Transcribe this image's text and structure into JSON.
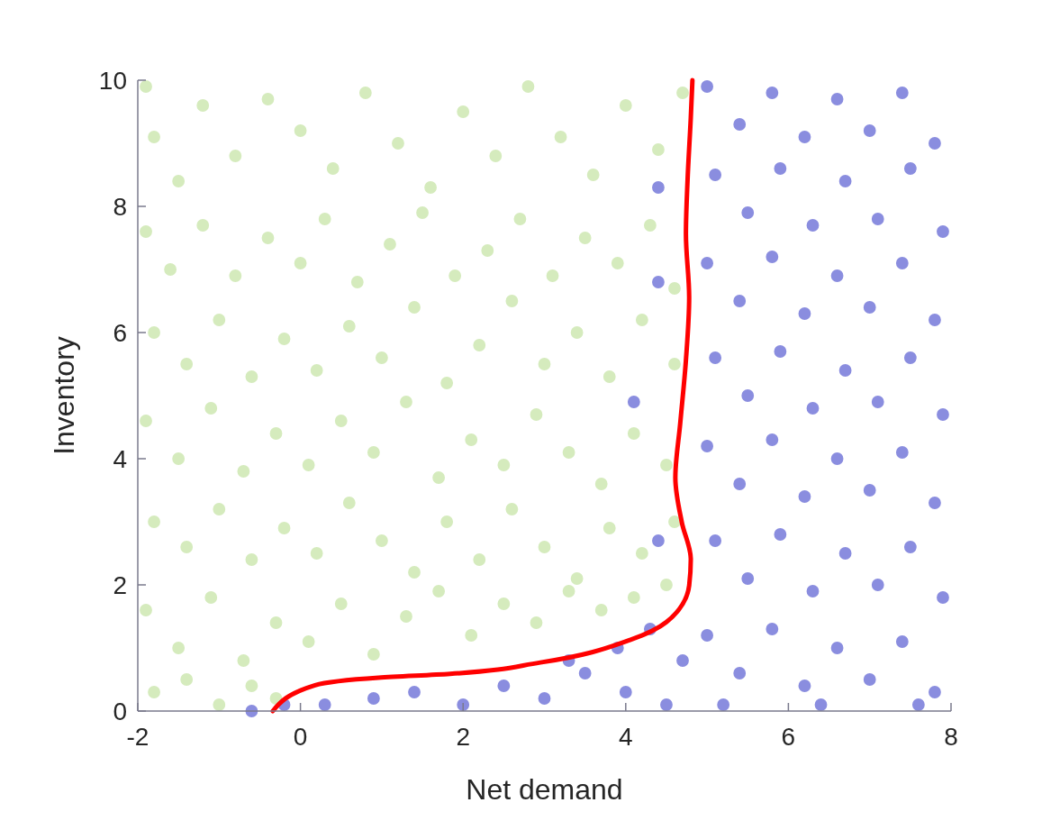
{
  "chart_data": {
    "type": "scatter",
    "xlabel": "Net demand",
    "ylabel": "Inventory",
    "xlim": [
      -2,
      8
    ],
    "ylim": [
      0,
      10
    ],
    "xticks": [
      -2,
      0,
      2,
      4,
      6,
      8
    ],
    "yticks": [
      0,
      2,
      4,
      6,
      8,
      10
    ],
    "grid": false,
    "series": [
      {
        "marker": "circle",
        "color": "#d5ebbd",
        "x": [
          -1.9,
          -1.8,
          -1.5,
          -1.2,
          -0.8,
          -0.4,
          0,
          0.4,
          0.8,
          1.2,
          1.6,
          2.0,
          2.4,
          2.8,
          3.2,
          3.6,
          4.0,
          4.4,
          4.7,
          -1.9,
          -1.6,
          -1.2,
          -0.8,
          -0.4,
          0,
          0.3,
          0.7,
          1.1,
          1.5,
          1.9,
          2.3,
          2.7,
          3.1,
          3.5,
          3.9,
          4.3,
          4.6,
          -1.8,
          -1.4,
          -1.0,
          -0.6,
          -0.2,
          0.2,
          0.6,
          1.0,
          1.4,
          1.8,
          2.2,
          2.6,
          3.0,
          3.4,
          3.8,
          4.2,
          4.6,
          -1.9,
          -1.5,
          -1.1,
          -0.7,
          -0.3,
          0.1,
          0.5,
          0.9,
          1.3,
          1.7,
          2.1,
          2.5,
          2.9,
          3.3,
          3.7,
          4.1,
          4.5,
          -1.8,
          -1.4,
          -1.0,
          -0.6,
          -0.2,
          0.2,
          0.6,
          1.0,
          1.4,
          1.8,
          2.2,
          2.6,
          3.0,
          3.4,
          3.8,
          4.2,
          4.6,
          -1.9,
          -1.5,
          -1.1,
          -0.7,
          -0.3,
          0.1,
          0.5,
          0.9,
          1.3,
          1.7,
          2.1,
          2.5,
          2.9,
          3.3,
          3.7,
          4.1,
          4.5,
          -1.8,
          -1.4,
          -1.0,
          -0.6,
          -0.3
        ],
        "values": [
          9.9,
          9.1,
          8.4,
          9.6,
          8.8,
          9.7,
          9.2,
          8.6,
          9.8,
          9.0,
          8.3,
          9.5,
          8.8,
          9.9,
          9.1,
          8.5,
          9.6,
          8.9,
          9.8,
          7.6,
          7.0,
          7.7,
          6.9,
          7.5,
          7.1,
          7.8,
          6.8,
          7.4,
          7.9,
          6.9,
          7.3,
          7.8,
          6.9,
          7.5,
          7.1,
          7.7,
          6.7,
          6.0,
          5.5,
          6.2,
          5.3,
          5.9,
          5.4,
          6.1,
          5.6,
          6.4,
          5.2,
          5.8,
          6.5,
          5.5,
          6.0,
          5.3,
          6.2,
          5.5,
          4.6,
          4.0,
          4.8,
          3.8,
          4.4,
          3.9,
          4.6,
          4.1,
          4.9,
          3.7,
          4.3,
          3.9,
          4.7,
          4.1,
          3.6,
          4.4,
          3.9,
          3.0,
          2.6,
          3.2,
          2.4,
          2.9,
          2.5,
          3.3,
          2.7,
          2.2,
          3.0,
          2.4,
          3.2,
          2.6,
          2.1,
          2.9,
          2.5,
          3.0,
          1.6,
          1.0,
          1.8,
          0.8,
          1.4,
          1.1,
          1.7,
          0.9,
          1.5,
          1.9,
          1.2,
          1.7,
          1.4,
          1.9,
          1.6,
          1.8,
          2.0,
          0.3,
          0.5,
          0.1,
          0.4,
          0.2
        ]
      },
      {
        "marker": "circle",
        "color": "#8a8ddf",
        "x": [
          -0.6,
          -0.2,
          0.3,
          0.9,
          1.4,
          2.0,
          2.5,
          3.0,
          3.5,
          4.0,
          4.5,
          3.3,
          3.9,
          4.3,
          4.7,
          5.0,
          5.4,
          5.8,
          6.2,
          6.6,
          7.0,
          7.4,
          7.8,
          5.1,
          5.5,
          5.9,
          6.3,
          6.7,
          7.1,
          7.5,
          7.9,
          5.0,
          5.4,
          5.8,
          6.2,
          6.6,
          7.0,
          7.4,
          7.8,
          5.1,
          5.5,
          5.9,
          6.3,
          6.7,
          7.1,
          7.5,
          7.9,
          5.0,
          5.4,
          5.8,
          6.2,
          6.6,
          7.0,
          7.4,
          7.8,
          5.1,
          5.5,
          5.9,
          6.3,
          6.7,
          7.1,
          7.5,
          7.9,
          5.0,
          5.4,
          5.8,
          6.2,
          6.6,
          7.0,
          7.4,
          7.8,
          5.2,
          6.4,
          7.6,
          4.1,
          4.4,
          4.4,
          4.4
        ],
        "values": [
          0.0,
          0.1,
          0.1,
          0.2,
          0.3,
          0.1,
          0.4,
          0.2,
          0.6,
          0.3,
          0.1,
          0.8,
          1.0,
          1.3,
          0.8,
          9.9,
          9.3,
          9.8,
          9.1,
          9.7,
          9.2,
          9.8,
          9.0,
          8.5,
          7.9,
          8.6,
          7.7,
          8.4,
          7.8,
          8.6,
          7.6,
          7.1,
          6.5,
          7.2,
          6.3,
          6.9,
          6.4,
          7.1,
          6.2,
          5.6,
          5.0,
          5.7,
          4.8,
          5.4,
          4.9,
          5.6,
          4.7,
          4.2,
          3.6,
          4.3,
          3.4,
          4.0,
          3.5,
          4.1,
          3.3,
          2.7,
          2.1,
          2.8,
          1.9,
          2.5,
          2.0,
          2.6,
          1.8,
          1.2,
          0.6,
          1.3,
          0.4,
          1.0,
          0.5,
          1.1,
          0.3,
          0.1,
          0.1,
          0.1,
          4.9,
          2.7,
          6.8,
          8.3
        ]
      },
      {
        "type": "line",
        "marker": "none",
        "color": "#ff0000",
        "x": [
          -0.34,
          0.18,
          0.96,
          1.84,
          2.95,
          4.06,
          4.5,
          4.78,
          4.8,
          4.69,
          4.61,
          4.67,
          4.74,
          4.78,
          4.74,
          4.76,
          4.8,
          4.82
        ],
        "values": [
          0,
          0.41,
          0.53,
          0.59,
          0.77,
          1.13,
          1.41,
          1.99,
          2.41,
          2.99,
          3.7,
          4.56,
          5.56,
          6.56,
          7.56,
          8.41,
          9.41,
          10
        ]
      }
    ]
  }
}
